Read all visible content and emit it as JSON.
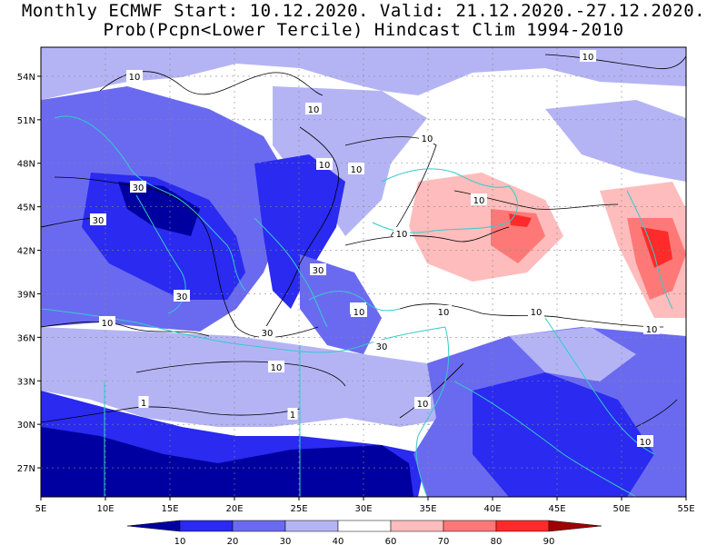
{
  "title": {
    "line1": "Monthly ECMWF Start: 10.12.2020. Valid: 21.12.2020.-27.12.2020.",
    "line2": "Prob(Pcpn<Lower Tercile) Hindcast Clim 1994-2010"
  },
  "map": {
    "lon_range": [
      5,
      55
    ],
    "lat_range": [
      25,
      56
    ],
    "x_ticks": [
      "5E",
      "10E",
      "15E",
      "20E",
      "25E",
      "30E",
      "35E",
      "40E",
      "45E",
      "50E",
      "55E"
    ],
    "y_ticks": [
      "54N",
      "51N",
      "48N",
      "45N",
      "42N",
      "39N",
      "36N",
      "33N",
      "30N",
      "27N"
    ],
    "grid": "dotted",
    "coastline_color": "#33cccc",
    "contour_color": "#000000",
    "contour_labels": [
      "10",
      "10",
      "10",
      "10",
      "10",
      "30",
      "30",
      "30",
      "30",
      "10",
      "30",
      "10",
      "10",
      "10",
      "10",
      "30",
      "10",
      "10",
      "10",
      "1",
      "1",
      "10",
      "10",
      "10",
      "10"
    ]
  },
  "legend": {
    "labels": [
      "10",
      "20",
      "30",
      "40",
      "60",
      "70",
      "80",
      "90"
    ],
    "colors": [
      "#0000a0",
      "#2a2af0",
      "#6a6af0",
      "#b4b4f5",
      "#ffffff",
      "#ffbcbc",
      "#ff7878",
      "#ff2a2a",
      "#a00000"
    ]
  }
}
